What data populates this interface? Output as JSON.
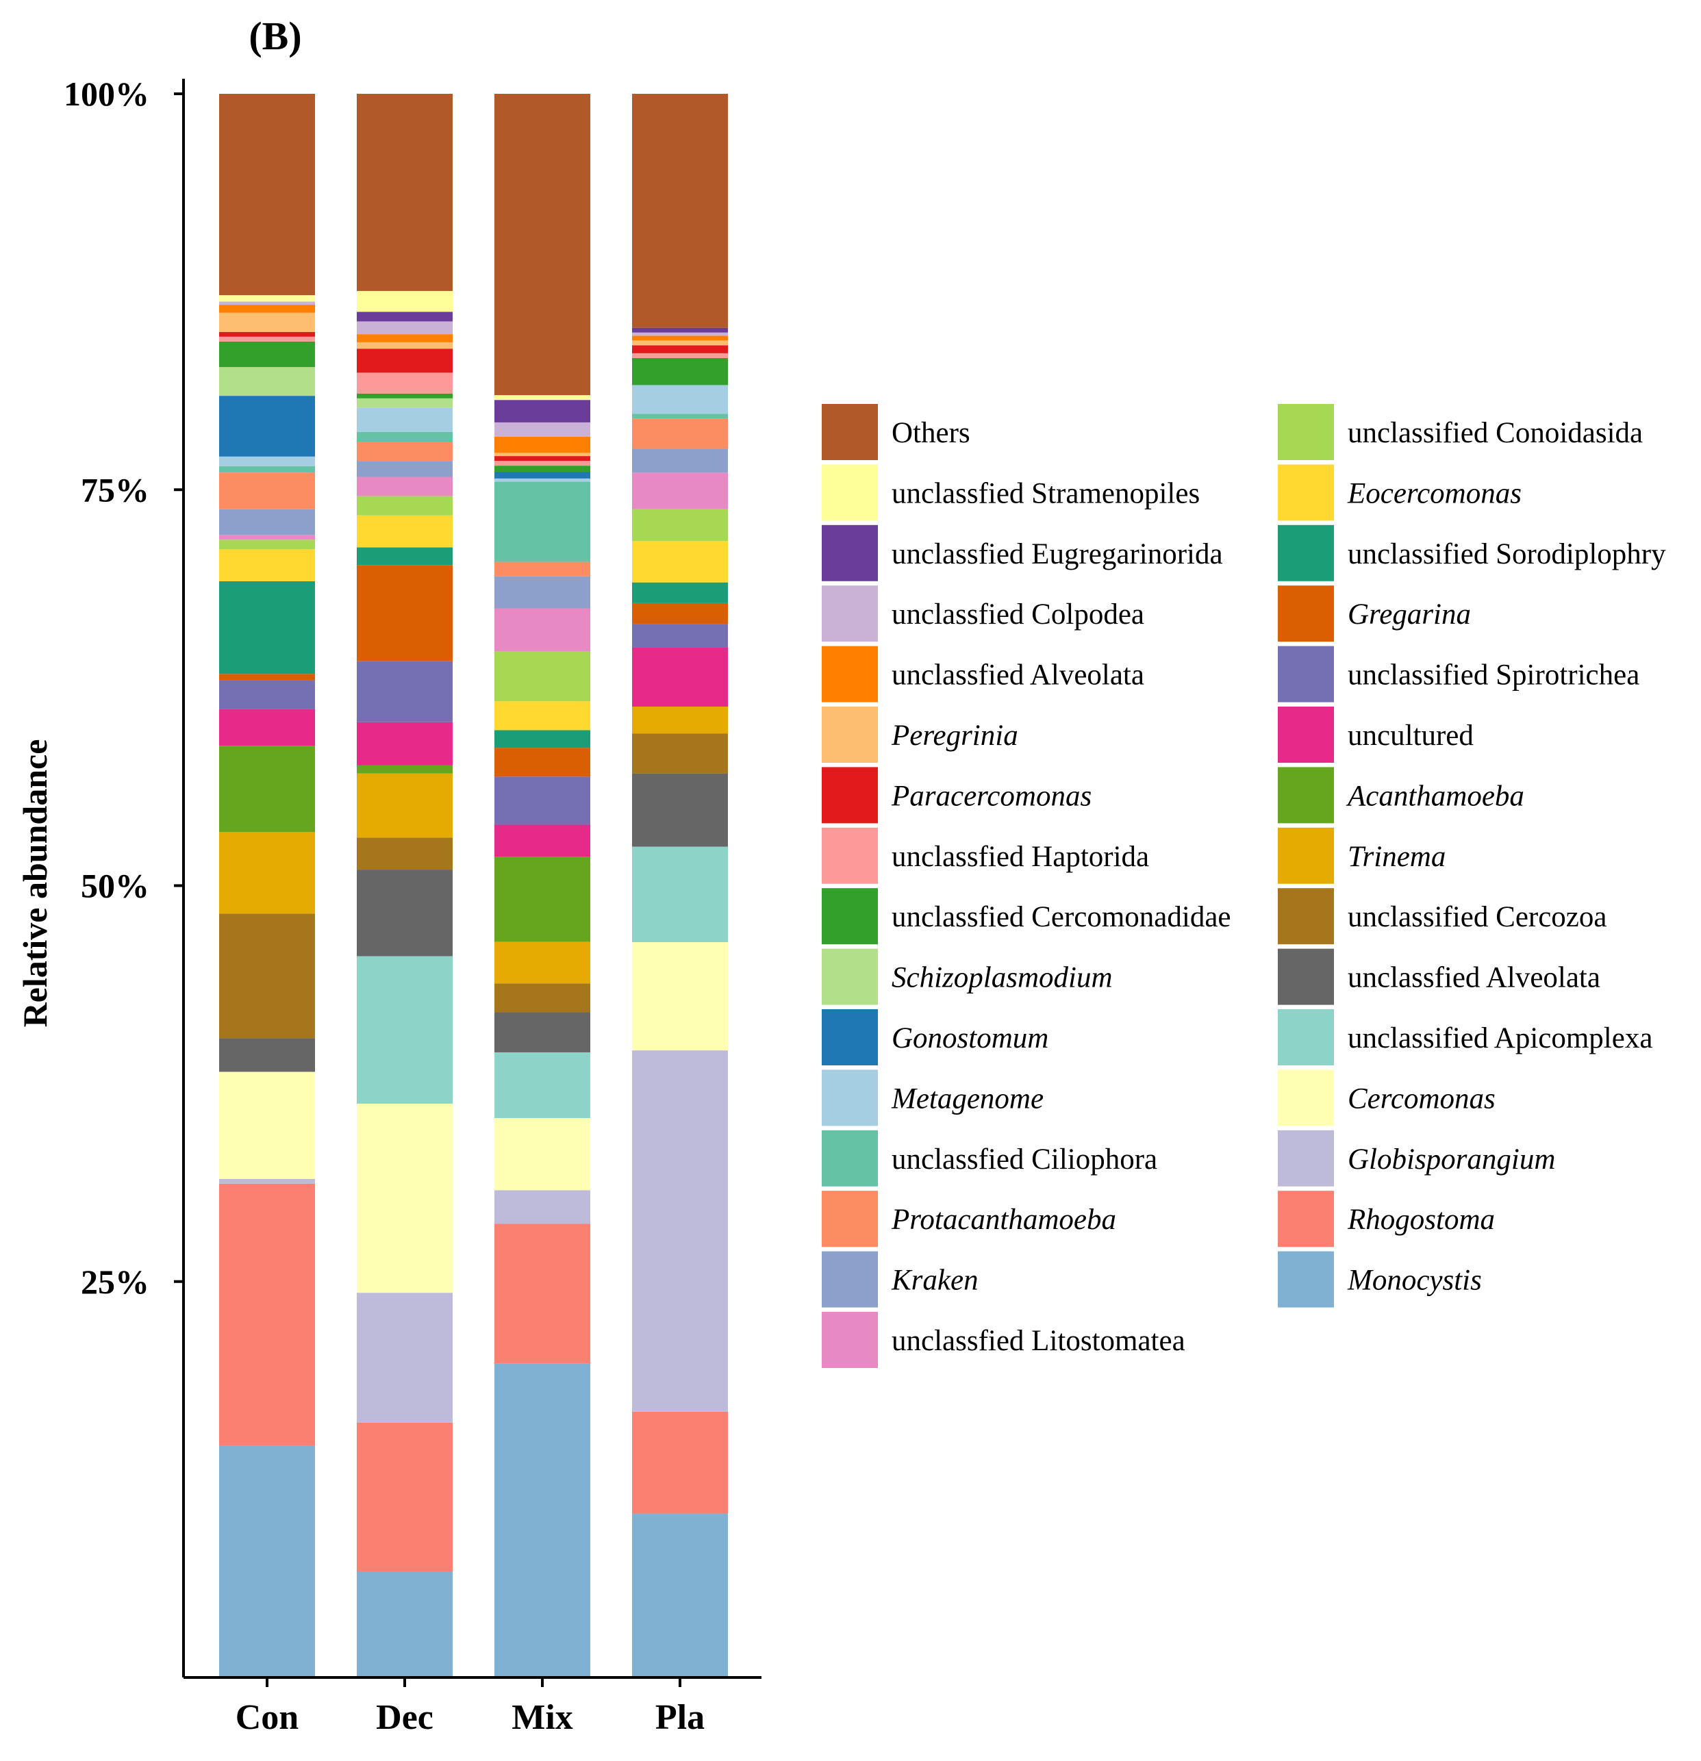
{
  "panel_label": "(B)",
  "chart_data": {
    "type": "bar",
    "stacked": true,
    "normalized": true,
    "categories": [
      "Con",
      "Dec",
      "Mix",
      "Pla"
    ],
    "ylabel": "Relative abundance",
    "xlabel": "",
    "ylim": [
      0,
      100
    ],
    "y_ticks": [
      {
        "value": 25,
        "label": "25%"
      },
      {
        "value": 50,
        "label": "50%"
      },
      {
        "value": 75,
        "label": "75%"
      },
      {
        "value": 100,
        "label": "100%"
      }
    ],
    "legend_position": "right",
    "series": [
      {
        "name": "Monocystis",
        "italic": true,
        "color": "#80b1d3",
        "values": [
          14.5,
          6.6,
          19.6,
          10.3
        ]
      },
      {
        "name": "Rhogostoma",
        "italic": true,
        "color": "#fb8072",
        "values": [
          16.4,
          9.3,
          8.7,
          6.4
        ]
      },
      {
        "name": "Globisporangium",
        "italic": true,
        "color": "#bebada",
        "values": [
          0.3,
          8.1,
          2.1,
          22.7
        ]
      },
      {
        "name": "Cercomonas",
        "italic": true,
        "color": "#ffffb3",
        "values": [
          6.7,
          11.8,
          4.5,
          6.8
        ]
      },
      {
        "name": "unclassified Apicomplexa",
        "italic": false,
        "color": "#8dd3c7",
        "values": [
          0.0,
          9.2,
          4.1,
          6.0
        ]
      },
      {
        "name": "unclassfied Alveolata",
        "italic": false,
        "color": "#666666",
        "values": [
          2.1,
          5.4,
          2.5,
          4.6
        ]
      },
      {
        "name": "unclassified Cercozoa",
        "italic": false,
        "color": "#a6761d",
        "values": [
          7.8,
          2.0,
          1.8,
          2.5
        ]
      },
      {
        "name": "Trinema",
        "italic": true,
        "color": "#e6ab02",
        "values": [
          5.1,
          4.0,
          2.6,
          1.7
        ]
      },
      {
        "name": "Acanthamoeba",
        "italic": true,
        "color": "#66a61e",
        "values": [
          5.4,
          0.5,
          5.3,
          0.0
        ]
      },
      {
        "name": "uncultured",
        "italic": false,
        "color": "#e7298a",
        "values": [
          2.3,
          2.7,
          2.0,
          3.7
        ]
      },
      {
        "name": "unclassified Spirotrichea",
        "italic": false,
        "color": "#7570b3",
        "values": [
          1.8,
          3.8,
          3.0,
          1.5
        ]
      },
      {
        "name": "Gregarina",
        "italic": true,
        "color": "#d95f02",
        "values": [
          0.4,
          6.0,
          1.8,
          1.3
        ]
      },
      {
        "name": "unclassified Sorodiplophry",
        "italic": false,
        "color": "#1b9e77",
        "values": [
          5.8,
          1.1,
          1.1,
          1.3
        ]
      },
      {
        "name": "Eocercomonas",
        "italic": true,
        "color": "#ffd92f",
        "values": [
          2.0,
          2.0,
          1.8,
          2.6
        ]
      },
      {
        "name": "unclassified Conoidasida",
        "italic": false,
        "color": "#a6d854",
        "values": [
          0.6,
          1.2,
          3.1,
          2.0
        ]
      },
      {
        "name": "unclassfied Litostomatea",
        "italic": false,
        "color": "#e78ac3",
        "values": [
          0.3,
          1.2,
          2.7,
          2.3
        ]
      },
      {
        "name": "Kraken",
        "italic": true,
        "color": "#8da0cb",
        "values": [
          1.6,
          1.0,
          2.0,
          1.5
        ]
      },
      {
        "name": "Protacanthamoeba",
        "italic": true,
        "color": "#fc8d62",
        "values": [
          2.3,
          1.2,
          0.9,
          1.9
        ]
      },
      {
        "name": "unclassfied Ciliophora",
        "italic": false,
        "color": "#66c2a5",
        "values": [
          0.4,
          0.6,
          5.0,
          0.3
        ]
      },
      {
        "name": "Metagenome",
        "italic": true,
        "color": "#a6cee3",
        "values": [
          0.6,
          1.5,
          0.2,
          1.8
        ]
      },
      {
        "name": "Gonostomum",
        "italic": true,
        "color": "#1f78b4",
        "values": [
          3.8,
          0.0,
          0.4,
          0.0
        ]
      },
      {
        "name": "Schizoplasmodium",
        "italic": true,
        "color": "#b2df8a",
        "values": [
          1.8,
          0.6,
          0.0,
          0.0
        ]
      },
      {
        "name": "unclassfied Cercomonadidae",
        "italic": false,
        "color": "#33a02c",
        "values": [
          1.6,
          0.3,
          0.4,
          1.7
        ]
      },
      {
        "name": "unclassfied Haptorida",
        "italic": false,
        "color": "#fb9a99",
        "values": [
          0.3,
          1.3,
          0.3,
          0.3
        ]
      },
      {
        "name": "Paracercomonas",
        "italic": true,
        "color": "#e31a1c",
        "values": [
          0.3,
          1.5,
          0.3,
          0.5
        ]
      },
      {
        "name": "Peregrinia",
        "italic": true,
        "color": "#fdbf6f",
        "values": [
          1.2,
          0.4,
          0.2,
          0.3
        ]
      },
      {
        "name": "unclassfied Alveolata",
        "italic": false,
        "color": "#ff7f00",
        "values": [
          0.5,
          0.5,
          1.0,
          0.3
        ]
      },
      {
        "name": "unclassfied Colpodea",
        "italic": false,
        "color": "#cab2d6",
        "values": [
          0.2,
          0.8,
          0.9,
          0.2
        ]
      },
      {
        "name": "unclassfied  Eugregarinorida",
        "italic": false,
        "color": "#6a3d9a",
        "values": [
          0.0,
          0.6,
          1.4,
          0.3
        ]
      },
      {
        "name": "unclassfied Stramenopiles",
        "italic": false,
        "color": "#ffff99",
        "values": [
          0.4,
          1.3,
          0.3,
          0.0
        ]
      },
      {
        "name": "Others",
        "italic": false,
        "color": "#b15928",
        "values": [
          12.6,
          12.3,
          18.8,
          14.7
        ]
      }
    ],
    "legend_columns": [
      [
        "Others",
        "unclassfied Stramenopiles",
        "unclassfied  Eugregarinorida",
        "unclassfied Colpodea",
        "unclassfied Alveolata",
        "Peregrinia",
        "Paracercomonas",
        "unclassfied Haptorida",
        "unclassfied Cercomonadidae",
        "Schizoplasmodium",
        "Gonostomum",
        "Metagenome",
        "unclassfied Ciliophora",
        "Protacanthamoeba",
        "Kraken",
        "unclassfied Litostomatea"
      ],
      [
        "unclassified Conoidasida",
        "Eocercomonas",
        "unclassified Sorodiplophry",
        "Gregarina",
        "unclassified Spirotrichea",
        "uncultured",
        "Acanthamoeba",
        "Trinema",
        "unclassified Cercozoa",
        "unclassfied Alveolata",
        "unclassified Apicomplexa",
        "Cercomonas",
        "Globisporangium",
        "Rhogostoma",
        "Monocystis"
      ]
    ]
  }
}
